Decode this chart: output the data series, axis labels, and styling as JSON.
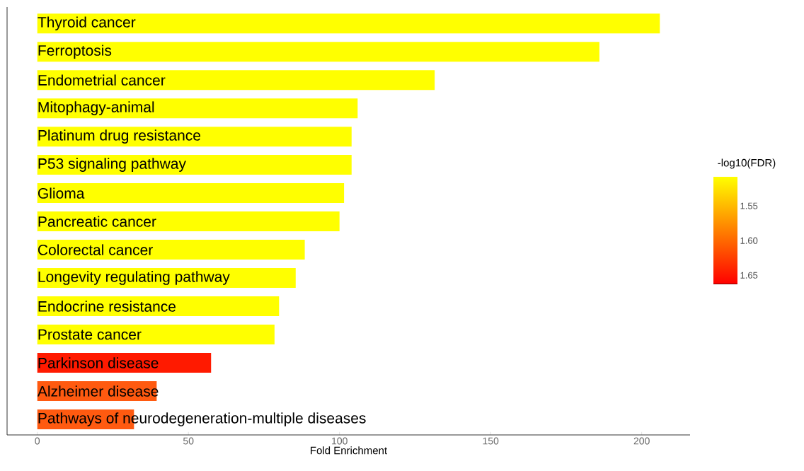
{
  "chart_data": {
    "type": "bar",
    "orientation": "horizontal",
    "xlabel": "Fold Enrichment",
    "clabel": "-log10(FDR)",
    "categories": [
      "Thyroid cancer",
      "Ferroptosis",
      "Endometrial cancer",
      "Mitophagy-animal",
      "Platinum drug resistance",
      "P53 signaling pathway",
      "Glioma",
      "Pancreatic cancer",
      "Colorectal cancer",
      "Longevity regulating pathway",
      "Endocrine resistance",
      "Prostate cancer",
      "Parkinson disease",
      "Alzheimer disease",
      "Pathways of neurodegeneration-multiple diseases"
    ],
    "values": [
      206,
      186,
      131.5,
      106,
      104,
      104,
      101.5,
      100,
      88.5,
      85.5,
      80,
      78.5,
      57.5,
      39.5,
      32
    ],
    "colors": [
      "#ffff00",
      "#ffff00",
      "#ffff00",
      "#ffff00",
      "#ffff00",
      "#ffff00",
      "#ffff00",
      "#ffff00",
      "#ffff00",
      "#ffff00",
      "#ffff00",
      "#ffff00",
      "#ff1a00",
      "#ff5a10",
      "#ff5a10"
    ],
    "xlim": [
      -10,
      216
    ],
    "xticks": [
      0,
      50,
      100,
      150,
      200
    ],
    "clim": [
      1.508,
      1.663
    ],
    "cticks": [
      {
        "value": 1.55,
        "label": "1.55"
      },
      {
        "value": 1.6,
        "label": "1.60"
      },
      {
        "value": 1.65,
        "label": "1.65"
      }
    ],
    "grid": false
  }
}
